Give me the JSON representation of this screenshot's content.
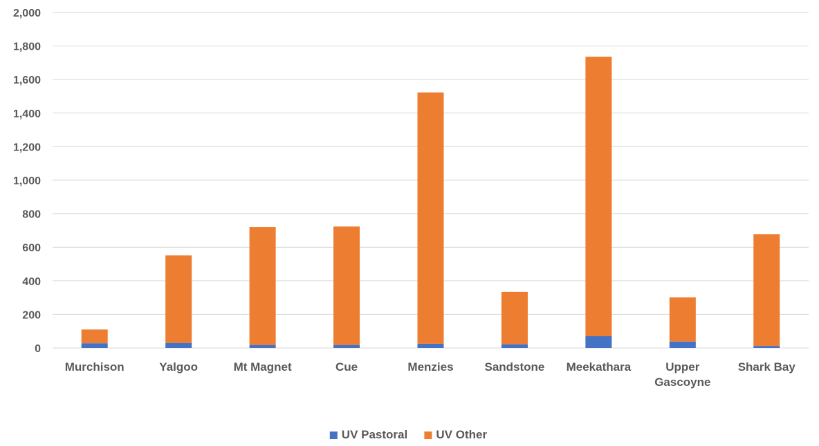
{
  "chart_data": {
    "type": "bar",
    "stacked": true,
    "title": "",
    "xlabel": "",
    "ylabel": "",
    "categories": [
      "Murchison",
      "Yalgoo",
      "Mt Magnet",
      "Cue",
      "Menzies",
      "Sandstone",
      "Meekathara",
      "Upper Gascoyne",
      "Shark Bay"
    ],
    "series": [
      {
        "name": "UV Pastoral",
        "color": "#4472C4",
        "values": [
          28,
          30,
          18,
          18,
          25,
          22,
          70,
          38,
          12
        ]
      },
      {
        "name": "UV Other",
        "color": "#ED7D31",
        "values": [
          82,
          522,
          702,
          706,
          1498,
          312,
          1666,
          264,
          666
        ]
      }
    ],
    "ylim": [
      0,
      2000
    ],
    "yticks": [
      0,
      200,
      400,
      600,
      800,
      1000,
      1200,
      1400,
      1600,
      1800,
      2000
    ],
    "ytick_labels": [
      "0",
      "200",
      "400",
      "600",
      "800",
      "1,000",
      "1,200",
      "1,400",
      "1,600",
      "1,800",
      "2,000"
    ],
    "grid": true,
    "legend": "bottom"
  }
}
